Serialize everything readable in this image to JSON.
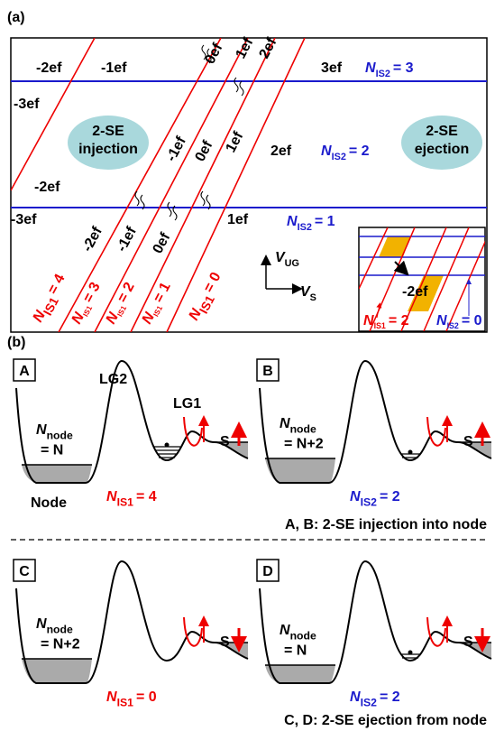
{
  "panel_a": {
    "label": "(a)",
    "rows": [
      {
        "charges": [
          "-2ef",
          "-1ef",
          "0ef",
          "1ef",
          "2ef",
          "3ef"
        ],
        "n_is2": {
          "symbol": "N",
          "sub": "IS2",
          "value": "= 3"
        }
      },
      {
        "charges": [
          "-3ef",
          "-1ef",
          "0ef",
          "1ef",
          "2ef",
          "-2ef"
        ],
        "n_is2": {
          "symbol": "N",
          "sub": "IS2",
          "value": "= 2"
        }
      },
      {
        "charges": [
          "-3ef",
          "-2ef",
          "-1ef",
          "0ef",
          "1ef"
        ],
        "n_is2": {
          "symbol": "N",
          "sub": "IS2",
          "value": "= 1"
        }
      }
    ],
    "processes": [
      {
        "lines": [
          "2-SE",
          "injection"
        ]
      },
      {
        "lines": [
          "2-SE",
          "ejection"
        ]
      }
    ],
    "n_is1": [
      {
        "symbol": "N",
        "sub": "IS1",
        "value": "= 4"
      },
      {
        "symbol": "N",
        "sub": "IS1",
        "value": "= 3"
      },
      {
        "symbol": "N",
        "sub": "IS1",
        "value": "= 2"
      },
      {
        "symbol": "N",
        "sub": "IS1",
        "value": "= 1"
      },
      {
        "symbol": "N",
        "sub": "IS1",
        "value": "= 0"
      }
    ],
    "axes": {
      "vertical": {
        "symbol": "V",
        "sub": "UG"
      },
      "horizontal": {
        "symbol": "V",
        "sub": "S"
      }
    },
    "inset": {
      "charge": "-2ef",
      "n_is1": {
        "symbol": "N",
        "sub": "IS1",
        "value": "= 2"
      },
      "n_is2": {
        "symbol": "N",
        "sub": "IS2",
        "value": "= 0"
      }
    }
  },
  "panel_b": {
    "label": "(b)",
    "panels": [
      {
        "letter": "A",
        "barrier_labels": [
          "LG2",
          "LG1"
        ],
        "node_state": {
          "symbol": "N",
          "sub": "node",
          "value": "= N"
        },
        "node_label": "Node",
        "island": {
          "symbol": "N",
          "sub": "IS1",
          "value": "= 4"
        },
        "lead": "S"
      },
      {
        "letter": "B",
        "node_state": {
          "symbol": "N",
          "sub": "node",
          "value": "= N+2"
        },
        "island": {
          "symbol": "N",
          "sub": "IS2",
          "value": "= 2"
        },
        "lead": "S"
      },
      {
        "letter": "C",
        "node_state": {
          "symbol": "N",
          "sub": "node",
          "value": "= N+2"
        },
        "island": {
          "symbol": "N",
          "sub": "IS1",
          "value": "= 0"
        },
        "lead": "S"
      },
      {
        "letter": "D",
        "node_state": {
          "symbol": "N",
          "sub": "node",
          "value": "= N"
        },
        "island": {
          "symbol": "N",
          "sub": "IS2",
          "value": "= 2"
        },
        "lead": "S"
      }
    ],
    "captions": [
      "A, B: 2-SE injection into node",
      "C, D: 2-SE ejection from node"
    ]
  }
}
